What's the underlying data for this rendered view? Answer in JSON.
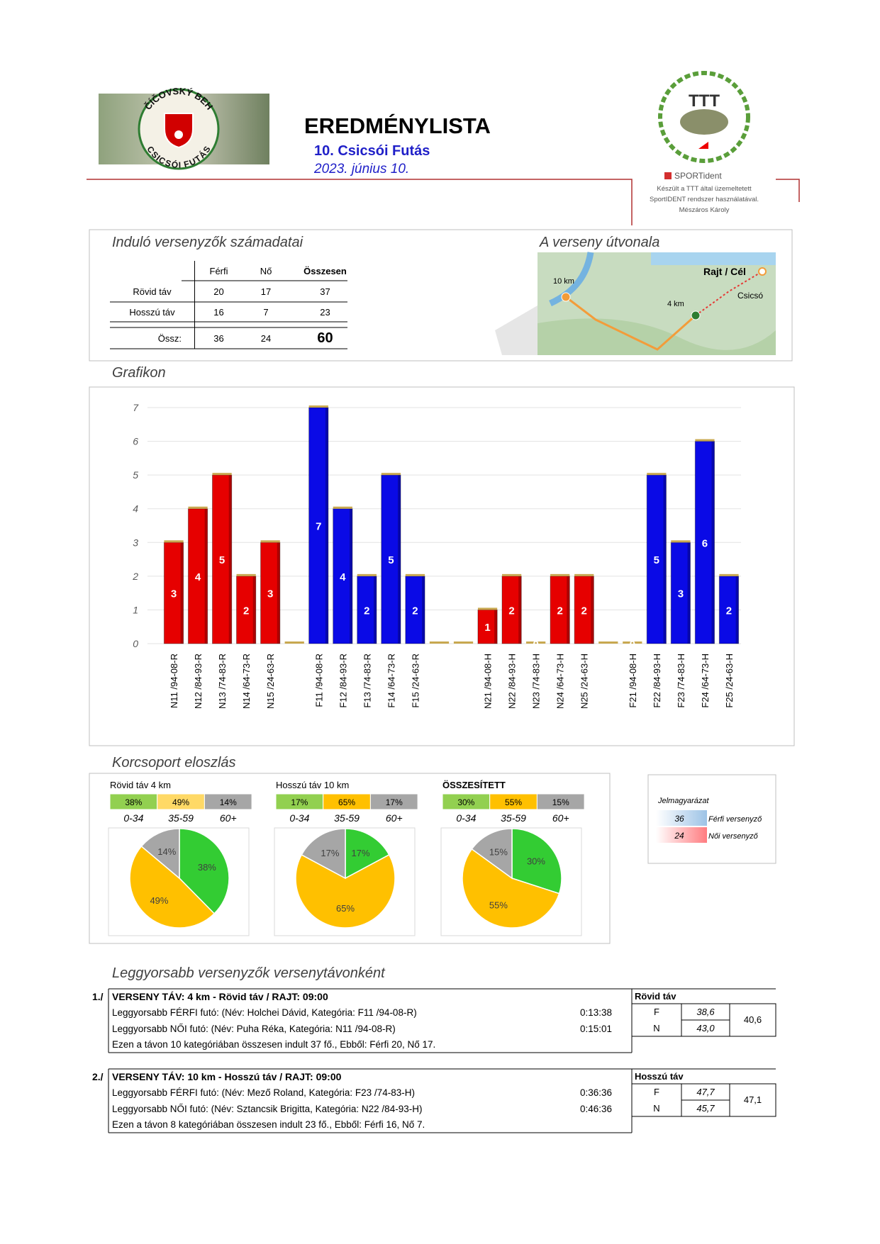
{
  "header": {
    "logo_top": "ČÍČOVSKÝ BEH",
    "logo_bottom": "CSICSÓI FUTÁS",
    "title": "EREDMÉNYLISTA",
    "event": "10. Csicsói Futás",
    "date": "2023. június 10.",
    "org_logo": "TTT",
    "system": "SPORTident",
    "credit": [
      "Készült a TTT által üzemeltetett",
      "SportIDENT rendszer használatával.",
      "Mészáros Károly"
    ]
  },
  "sections": {
    "stats": "Induló versenyzők számadatai",
    "route": "A verseny útvonala",
    "graph": "Grafikon",
    "age": "Korcsoport eloszlás",
    "fastest": "Leggyorsabb versenyzők versenytávonként"
  },
  "stats_table": {
    "columns": [
      "Férfi",
      "Nő",
      "Összesen"
    ],
    "rows": [
      {
        "label": "Rövid táv",
        "cells": [
          20,
          17,
          37
        ]
      },
      {
        "label": "Hosszú táv",
        "cells": [
          16,
          7,
          23
        ]
      },
      {
        "label": "Össz:",
        "cells": [
          36,
          24,
          60
        ]
      }
    ]
  },
  "map": {
    "labels": [
      "10 km",
      "Rajt / Cél",
      "4 km",
      "Csicsó"
    ]
  },
  "chart_data": [
    {
      "type": "bar",
      "categories": [
        "N11 /94-08-R",
        "N12 /84-93-R",
        "N13 /74-83-R",
        "N14 /64-73-R",
        "N15 /24-63-R",
        null,
        "F11 /94-08-R",
        "F12 /84-93-R",
        "F13 /74-83-R",
        "F14 /64-73-R",
        "F15 /24-63-R",
        null,
        null,
        "N21 /94-08-H",
        "N22 /84-93-H",
        "N23 /74-83-H",
        "N24 /64-73-H",
        "N25 /24-63-H",
        null,
        "F21 /94-08-H",
        "F22 /84-93-H",
        "F23 /74-83-H",
        "F24 /64-73-H",
        "F25 /24-63-H"
      ],
      "values": [
        3,
        4,
        5,
        2,
        3,
        0,
        7,
        4,
        2,
        5,
        2,
        0,
        0,
        1,
        2,
        0,
        2,
        2,
        0,
        0,
        5,
        3,
        6,
        2
      ],
      "colors": [
        "#e60000",
        "#e60000",
        "#e60000",
        "#e60000",
        "#e60000",
        "#c8a850",
        "#0a0ae6",
        "#0a0ae6",
        "#0a0ae6",
        "#0a0ae6",
        "#0a0ae6",
        "#c8a850",
        "#c8a850",
        "#e60000",
        "#e60000",
        "#e60000",
        "#e60000",
        "#e60000",
        "#c8a850",
        "#0a0ae6",
        "#0a0ae6",
        "#0a0ae6",
        "#0a0ae6",
        "#0a0ae6"
      ],
      "ylim": [
        0,
        7
      ],
      "yticks": [
        0,
        1,
        2,
        3,
        4,
        5,
        6,
        7
      ],
      "grid": true
    },
    {
      "type": "pie",
      "title": "Rövid táv 4 km",
      "categories": [
        "0-34",
        "35-59",
        "60+"
      ],
      "values": [
        38,
        49,
        14
      ],
      "value_labels": [
        "38%",
        "49%",
        "14%"
      ],
      "colors": [
        "#33cc33",
        "#ffc000",
        "#a6a6a6"
      ],
      "header_colors": [
        "#92d050",
        "#ffd966",
        "#a6a6a6"
      ]
    },
    {
      "type": "pie",
      "title": "Hosszú táv 10 km",
      "categories": [
        "0-34",
        "35-59",
        "60+"
      ],
      "values": [
        17,
        65,
        17
      ],
      "value_labels": [
        "17%",
        "65%",
        "17%"
      ],
      "colors": [
        "#33cc33",
        "#ffc000",
        "#a6a6a6"
      ],
      "header_colors": [
        "#92d050",
        "#ffc000",
        "#a6a6a6"
      ]
    },
    {
      "type": "pie",
      "title": "ÖSSZESÍTETT",
      "categories": [
        "0-34",
        "35-59",
        "60+"
      ],
      "values": [
        30,
        55,
        15
      ],
      "value_labels": [
        "30%",
        "55%",
        "15%"
      ],
      "colors": [
        "#33cc33",
        "#ffc000",
        "#a6a6a6"
      ],
      "header_colors": [
        "#92d050",
        "#ffc000",
        "#a6a6a6"
      ]
    }
  ],
  "legend": {
    "title": "Jelmagyarázat",
    "items": [
      {
        "value": 36,
        "label": "Férfi versenyző",
        "color": "#9dc3e6"
      },
      {
        "value": 24,
        "label": "Női versenyző",
        "color": "#ff7c80"
      }
    ]
  },
  "fastest": [
    {
      "number": "1./",
      "heading": "VERSENY TÁV: 4 km -  Rövid táv /   RAJT: 09:00",
      "lines": [
        {
          "text": "Leggyorsabb FÉRFI futó: (Név: Holchei Dávid, Kategória: F11 /94-08-R)",
          "time": "0:13:38"
        },
        {
          "text": "Leggyorsabb NŐI futó: (Név: Puha Réka, Kategória: N11 /94-08-R)",
          "time": "0:15:01"
        }
      ],
      "summary": "Ezen a távon 10 kategóriában összesen indult 37 fő., Ebből: Férfi 20, Nő 17.",
      "side": {
        "title": "Rövid táv",
        "rows": [
          {
            "label": "F",
            "value": "38,6"
          },
          {
            "label": "N",
            "value": "43,0"
          }
        ],
        "total": "40,6"
      }
    },
    {
      "number": "2./",
      "heading": "VERSENY TÁV: 10 km -  Hosszú táv /   RAJT: 09:00",
      "lines": [
        {
          "text": "Leggyorsabb FÉRFI futó: (Név: Mező Roland, Kategória: F23 /74-83-H)",
          "time": "0:36:36"
        },
        {
          "text": "Leggyorsabb NŐI futó: (Név: Sztancsik Brigitta, Kategória: N22 /84-93-H)",
          "time": "0:46:36"
        }
      ],
      "summary": "Ezen a távon 8 kategóriában összesen indult 23 fő., Ebből: Férfi 16, Nő 7.",
      "side": {
        "title": "Hosszú táv",
        "rows": [
          {
            "label": "F",
            "value": "47,7"
          },
          {
            "label": "N",
            "value": "45,7"
          }
        ],
        "total": "47,1"
      }
    }
  ]
}
